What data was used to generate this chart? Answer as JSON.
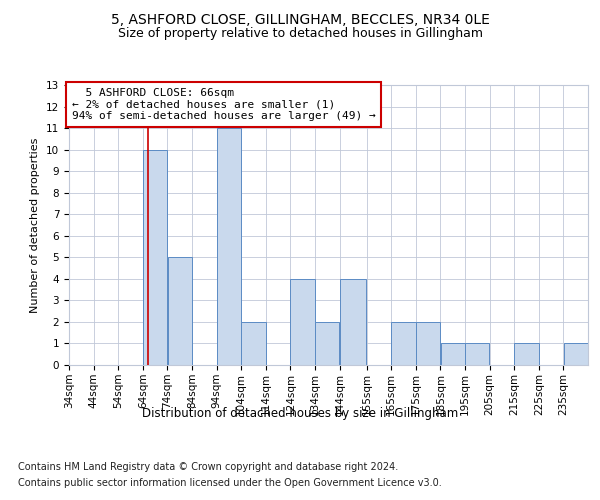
{
  "title1": "5, ASHFORD CLOSE, GILLINGHAM, BECCLES, NR34 0LE",
  "title2": "Size of property relative to detached houses in Gillingham",
  "xlabel": "Distribution of detached houses by size in Gillingham",
  "ylabel": "Number of detached properties",
  "footer1": "Contains HM Land Registry data © Crown copyright and database right 2024.",
  "footer2": "Contains public sector information licensed under the Open Government Licence v3.0.",
  "annotation_line1": "5 ASHFORD CLOSE: 66sqm",
  "annotation_line2": "← 2% of detached houses are smaller (1)",
  "annotation_line3": "94% of semi-detached houses are larger (49) →",
  "property_size": 66,
  "bar_categories": [
    "34sqm",
    "44sqm",
    "54sqm",
    "64sqm",
    "74sqm",
    "84sqm",
    "94sqm",
    "104sqm",
    "114sqm",
    "124sqm",
    "134sqm",
    "144sqm",
    "155sqm",
    "165sqm",
    "175sqm",
    "185sqm",
    "195sqm",
    "205sqm",
    "215sqm",
    "225sqm",
    "235sqm"
  ],
  "bar_values": [
    0,
    0,
    0,
    10,
    5,
    0,
    11,
    2,
    0,
    4,
    2,
    4,
    0,
    2,
    2,
    1,
    1,
    0,
    1,
    0,
    1
  ],
  "bar_edges": [
    34,
    44,
    54,
    64,
    74,
    84,
    94,
    104,
    114,
    124,
    134,
    144,
    155,
    165,
    175,
    185,
    195,
    205,
    215,
    225,
    235,
    245
  ],
  "bar_color": "#c9d9ed",
  "bar_edge_color": "#5b8bc4",
  "vline_x": 66,
  "vline_color": "#cc0000",
  "annotation_box_color": "#cc0000",
  "grid_color": "#c0c8d8",
  "ylim": [
    0,
    13
  ],
  "yticks": [
    0,
    1,
    2,
    3,
    4,
    5,
    6,
    7,
    8,
    9,
    10,
    11,
    12,
    13
  ],
  "bg_color": "#ffffff",
  "title1_fontsize": 10,
  "title2_fontsize": 9,
  "xlabel_fontsize": 8.5,
  "ylabel_fontsize": 8,
  "tick_fontsize": 7.5,
  "annotation_fontsize": 8,
  "footer_fontsize": 7
}
